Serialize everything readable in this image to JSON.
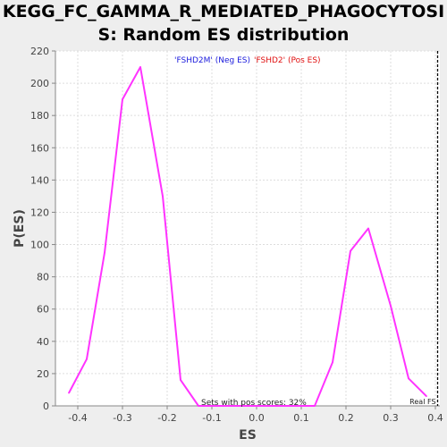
{
  "title_line1": "KEGG_FC_GAMMA_R_MEDIATED_PHAGOCYTOSI",
  "title_line2": "S: Random ES distribution",
  "chart_data": {
    "type": "line",
    "title": "KEGG_FC_GAMMA_R_MEDIATED_PHAGOCYTOSIS: Random ES distribution",
    "xlabel": "ES",
    "ylabel": "P(ES)",
    "xlim": [
      -0.45,
      0.41
    ],
    "ylim": [
      0,
      220
    ],
    "xticks": [
      -0.4,
      -0.3,
      -0.2,
      -0.1,
      0.0,
      0.1,
      0.2,
      0.3,
      0.4
    ],
    "xtick_labels": [
      "-0.4",
      "-0.3",
      "-0.2",
      "-0.1",
      "0.0",
      "0.1",
      "0.2",
      "0.3",
      "0.4"
    ],
    "yticks": [
      0,
      20,
      40,
      60,
      80,
      100,
      120,
      140,
      160,
      180,
      200,
      220
    ],
    "grid": true,
    "series": [
      {
        "color": "#ff33ff",
        "points": [
          [
            -0.42,
            8
          ],
          [
            -0.38,
            29
          ],
          [
            -0.34,
            95
          ],
          [
            -0.3,
            190
          ],
          [
            -0.26,
            210
          ],
          [
            -0.21,
            130
          ],
          [
            -0.17,
            16
          ],
          [
            -0.13,
            0
          ],
          [
            0.13,
            0
          ],
          [
            0.17,
            27
          ],
          [
            0.21,
            96
          ],
          [
            0.25,
            110
          ],
          [
            0.3,
            62
          ],
          [
            0.34,
            17
          ],
          [
            0.38,
            6
          ]
        ]
      }
    ],
    "legend": {
      "neg_label": "'FSHD2M' (Neg ES)",
      "pos_label": "'FSHD2' (Pos ES)",
      "neg_color": "#1a1adc",
      "pos_color": "#e01010",
      "placement": "top-center"
    },
    "annotation": "Sets with pos scores: 32%",
    "real_es_label": "Real FS",
    "real_es_value": 0.405
  }
}
